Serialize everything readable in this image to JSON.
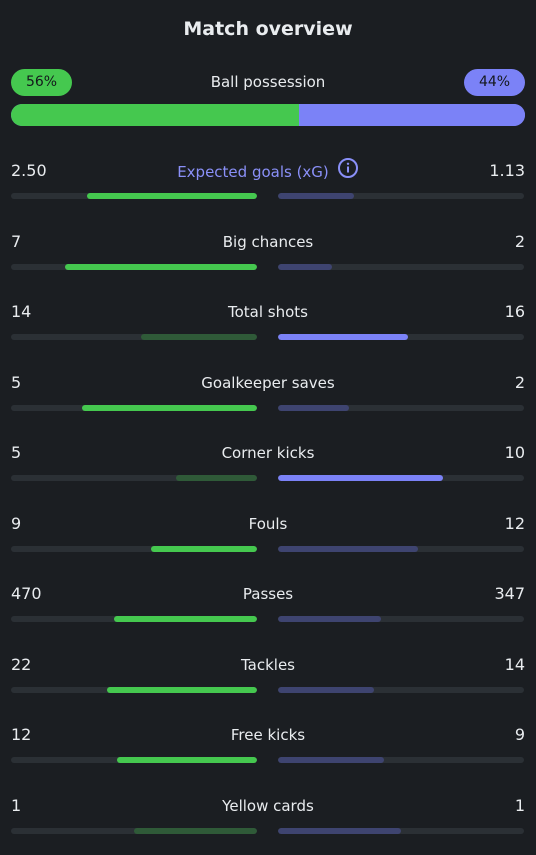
{
  "title": "Match overview",
  "possession": {
    "label": "Ball possession",
    "home": "56%",
    "away": "44%",
    "home_value": 56,
    "away_value": 44
  },
  "colors": {
    "home": "#45c84f",
    "away": "#7b82f7",
    "accent_label": "#8a90f8"
  },
  "info_icon": "info-circle-icon",
  "stats": [
    {
      "id": "xg",
      "label": "Expected goals (xG)",
      "home": "2.50",
      "away": "1.13",
      "home_fill": 0.69,
      "away_fill": 0.31,
      "winner": "home",
      "accent": true,
      "info": true
    },
    {
      "id": "big-chances",
      "label": "Big chances",
      "home": "7",
      "away": "2",
      "home_fill": 0.78,
      "away_fill": 0.22,
      "winner": "home"
    },
    {
      "id": "total-shots",
      "label": "Total shots",
      "home": "14",
      "away": "16",
      "home_fill": 0.47,
      "away_fill": 0.53,
      "winner": "away"
    },
    {
      "id": "goalkeeper-saves",
      "label": "Goalkeeper saves",
      "home": "5",
      "away": "2",
      "home_fill": 0.71,
      "away_fill": 0.29,
      "winner": "home"
    },
    {
      "id": "corner-kicks",
      "label": "Corner kicks",
      "home": "5",
      "away": "10",
      "home_fill": 0.33,
      "away_fill": 0.67,
      "winner": "away"
    },
    {
      "id": "fouls",
      "label": "Fouls",
      "home": "9",
      "away": "12",
      "home_fill": 0.43,
      "away_fill": 0.57,
      "winner": "home"
    },
    {
      "id": "passes",
      "label": "Passes",
      "home": "470",
      "away": "347",
      "home_fill": 0.58,
      "away_fill": 0.42,
      "winner": "home"
    },
    {
      "id": "tackles",
      "label": "Tackles",
      "home": "22",
      "away": "14",
      "home_fill": 0.61,
      "away_fill": 0.39,
      "winner": "home"
    },
    {
      "id": "free-kicks",
      "label": "Free kicks",
      "home": "12",
      "away": "9",
      "home_fill": 0.57,
      "away_fill": 0.43,
      "winner": "home"
    },
    {
      "id": "yellow-cards",
      "label": "Yellow cards",
      "home": "1",
      "away": "1",
      "home_fill": 0.5,
      "away_fill": 0.5,
      "winner": "none"
    }
  ]
}
